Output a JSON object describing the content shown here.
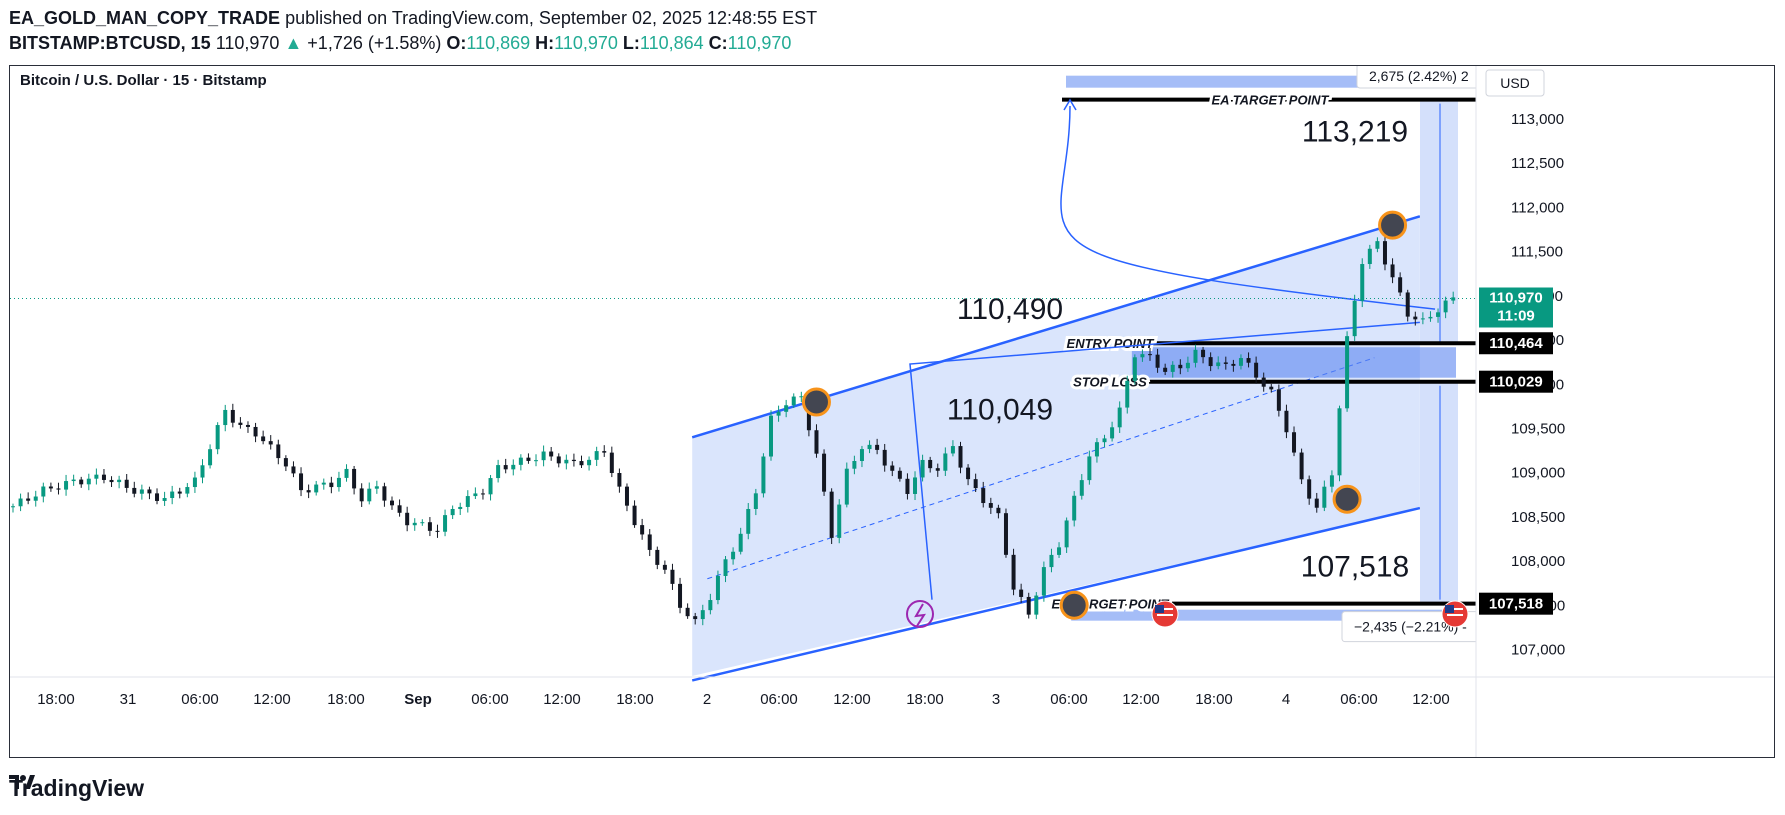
{
  "header": {
    "author": "EA_GOLD_MAN_COPY_TRADE",
    "published_text": "published on TradingView.com, September 02, 2025 12:48:55 EST",
    "symbol": "BITSTAMP:BTCUSD, 15",
    "last": "110,970",
    "change_arrow": "▲",
    "change": "+1,726 (+1.58%)",
    "o_label": "O:",
    "o": "110,869",
    "h_label": "H:",
    "h": "110,970",
    "l_label": "L:",
    "l": "110,864",
    "c_label": "C:",
    "c": "110,970"
  },
  "footer": {
    "brand": "TradingView",
    "logo_icon": "tradingview-logo-icon"
  },
  "colors": {
    "up": "#089981",
    "down": "#131722",
    "channel": "#2962ff",
    "channel_fill": "#d4e0fb",
    "band": "#5b86f0",
    "marker_fill": "#434651",
    "marker_ring": "#f7931a",
    "price_tag": "#089981"
  },
  "chart_data": {
    "type": "candlestick",
    "title": "Bitcoin / U.S. Dollar · 15 · Bitstamp",
    "currency": "USD",
    "ylim": [
      106700,
      113600
    ],
    "y_ticks": [
      107000,
      107500,
      108000,
      108500,
      109000,
      109500,
      110000,
      110500,
      111000,
      111500,
      112000,
      112500,
      113000
    ],
    "y_tick_labels": [
      "107,000",
      "107,500",
      "108,000",
      "108,500",
      "109,000",
      "109,500",
      "110,000",
      "110,500",
      "111,000",
      "111,500",
      "112,000",
      "112,500",
      "113,000"
    ],
    "x_tick_labels": [
      "18:00",
      "31",
      "06:00",
      "12:00",
      "18:00",
      "Sep",
      "06:00",
      "12:00",
      "18:00",
      "2",
      "06:00",
      "12:00",
      "18:00",
      "3",
      "06:00",
      "12:00",
      "18:00",
      "4",
      "06:00",
      "12:00"
    ],
    "series_path": [
      [
        0,
        108620
      ],
      [
        4,
        108800
      ],
      [
        8,
        108900
      ],
      [
        12,
        108950
      ],
      [
        16,
        108800
      ],
      [
        20,
        108700
      ],
      [
        24,
        108900
      ],
      [
        28,
        109700
      ],
      [
        30,
        109520
      ],
      [
        32,
        109450
      ],
      [
        36,
        109100
      ],
      [
        38,
        108800
      ],
      [
        42,
        108880
      ],
      [
        44,
        109000
      ],
      [
        46,
        108700
      ],
      [
        48,
        108850
      ],
      [
        50,
        108600
      ],
      [
        52,
        108450
      ],
      [
        56,
        108350
      ],
      [
        58,
        108600
      ],
      [
        62,
        108800
      ],
      [
        64,
        109050
      ],
      [
        68,
        109150
      ],
      [
        70,
        109200
      ],
      [
        74,
        109100
      ],
      [
        76,
        109150
      ],
      [
        78,
        109250
      ],
      [
        80,
        108800
      ],
      [
        84,
        108100
      ],
      [
        86,
        107900
      ],
      [
        88,
        107500
      ],
      [
        90,
        107300
      ],
      [
        92,
        107600
      ],
      [
        94,
        108000
      ],
      [
        96,
        108300
      ],
      [
        98,
        108800
      ],
      [
        100,
        109600
      ],
      [
        102,
        109800
      ],
      [
        104,
        109850
      ],
      [
        106,
        109200
      ],
      [
        108,
        108300
      ],
      [
        110,
        109000
      ],
      [
        112,
        109300
      ],
      [
        114,
        109250
      ],
      [
        116,
        109000
      ],
      [
        118,
        108800
      ],
      [
        120,
        109100
      ],
      [
        122,
        109050
      ],
      [
        124,
        109300
      ],
      [
        126,
        108900
      ],
      [
        128,
        108700
      ],
      [
        130,
        108500
      ],
      [
        132,
        107700
      ],
      [
        134,
        107400
      ],
      [
        136,
        107900
      ],
      [
        138,
        108200
      ],
      [
        140,
        108700
      ],
      [
        142,
        109200
      ],
      [
        144,
        109400
      ],
      [
        146,
        109700
      ],
      [
        148,
        110350
      ],
      [
        150,
        110300
      ],
      [
        152,
        110150
      ],
      [
        154,
        110200
      ],
      [
        156,
        110350
      ],
      [
        158,
        110250
      ],
      [
        160,
        110200
      ],
      [
        162,
        110300
      ],
      [
        164,
        110100
      ],
      [
        166,
        109900
      ],
      [
        168,
        109500
      ],
      [
        170,
        108900
      ],
      [
        172,
        108600
      ],
      [
        174,
        109000
      ],
      [
        176,
        110500
      ],
      [
        178,
        111400
      ],
      [
        180,
        111600
      ],
      [
        182,
        111200
      ],
      [
        184,
        110800
      ],
      [
        186,
        110700
      ],
      [
        188,
        110850
      ],
      [
        190,
        110970
      ]
    ],
    "last_price": 110970,
    "last_price_label": "110,970",
    "countdown": "11:09",
    "levels": [
      {
        "name": "EA TARGET POINT",
        "value": 113219,
        "tag": "",
        "callout": "113,219"
      },
      {
        "name": "ENTRY POINT",
        "value": 110464,
        "tag": "110,464",
        "callout": "110,490"
      },
      {
        "name": "STOP LOSS",
        "value": 110029,
        "tag": "110,029",
        "callout": "110,049"
      },
      {
        "name": "EA TARGET POINT",
        "value": 107518,
        "tag": "107,518",
        "callout": "107,518"
      }
    ],
    "measure_up_label": "2,675 (2.42%) 2",
    "measure_down_label": "−2,435 (−2.21%) -",
    "channel": {
      "lower_start": [
        90,
        106650
      ],
      "lower_end": [
        186,
        108600
      ],
      "upper_start": [
        90,
        109400
      ],
      "upper_end": [
        186,
        111900
      ]
    },
    "pivot_markers": [
      [
        106,
        109800
      ],
      [
        140,
        107500
      ],
      [
        176,
        108700
      ],
      [
        182,
        111800
      ]
    ],
    "event_icons": [
      "lightning-event-icon",
      "us-flag-icon",
      "us-flag-icon"
    ]
  }
}
